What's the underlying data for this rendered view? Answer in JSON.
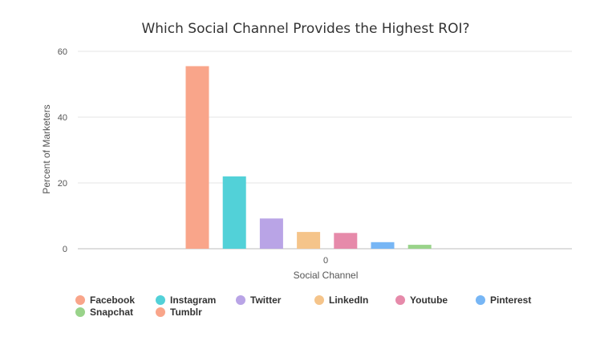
{
  "chart_data": {
    "type": "bar",
    "title": "Which Social Channel Provides the Highest ROI?",
    "xlabel": "Social Channel",
    "ylabel": "Percent of Marketers",
    "categories": [
      "0"
    ],
    "ylim": [
      0,
      60
    ],
    "yticks": [
      0,
      20,
      40,
      60
    ],
    "grid": true,
    "legend_position": "bottom",
    "series": [
      {
        "name": "Facebook",
        "values": [
          55.5
        ],
        "color": "#f9a58a"
      },
      {
        "name": "Instagram",
        "values": [
          22
        ],
        "color": "#52d1d8"
      },
      {
        "name": "Twitter",
        "values": [
          9.2
        ],
        "color": "#b9a4e6"
      },
      {
        "name": "LinkedIn",
        "values": [
          5.1
        ],
        "color": "#f5c48a"
      },
      {
        "name": "Youtube",
        "values": [
          4.8
        ],
        "color": "#e68aaa"
      },
      {
        "name": "Pinterest",
        "values": [
          2
        ],
        "color": "#77b6f5"
      },
      {
        "name": "Snapchat",
        "values": [
          1.2
        ],
        "color": "#99d38a"
      },
      {
        "name": "Tumblr",
        "values": [
          0
        ],
        "color": "#f9a58a"
      }
    ]
  }
}
